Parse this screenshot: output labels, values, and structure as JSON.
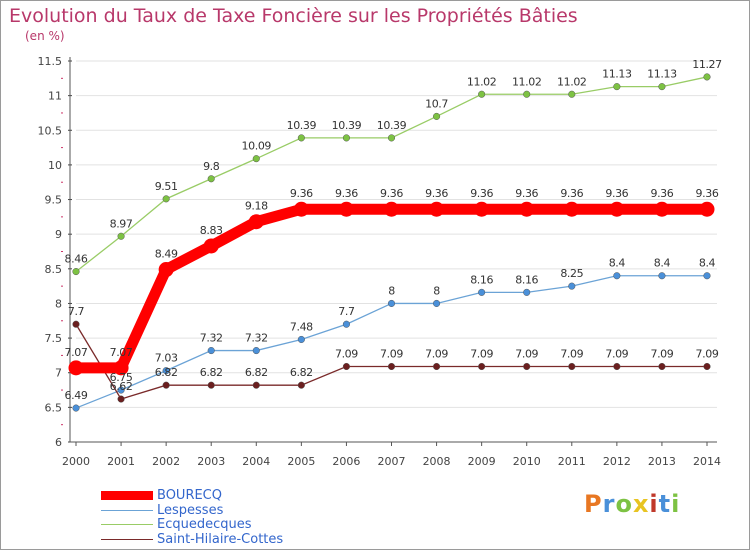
{
  "chart_data": {
    "type": "line",
    "title": "Evolution du Taux de Taxe Foncière sur les Propriétés Bâties",
    "ylabel": "(en %)",
    "xlabel": "",
    "x": [
      "2000",
      "2001",
      "2002",
      "2003",
      "2004",
      "2005",
      "2006",
      "2007",
      "2008",
      "2009",
      "2010",
      "2011",
      "2012",
      "2013",
      "2014"
    ],
    "ylim": [
      6,
      11.5
    ],
    "yticks": [
      "6",
      "6.5",
      "7",
      "7.5",
      "8",
      "8.5",
      "9",
      "9.5",
      "10",
      "10.5",
      "11",
      "11.5"
    ],
    "grid": "horizontal",
    "legend_position": "bottom-left",
    "series": [
      {
        "name": "BOURECQ",
        "color": "#ff0000",
        "emphasis": true,
        "values": [
          7.07,
          7.07,
          8.49,
          8.83,
          9.18,
          9.36,
          9.36,
          9.36,
          9.36,
          9.36,
          9.36,
          9.36,
          9.36,
          9.36,
          9.36
        ],
        "labels": [
          "7.07",
          "7.07",
          "8.49",
          "8.83",
          "9.18",
          "9.36",
          "9.36",
          "9.36",
          "9.36",
          "9.36",
          "9.36",
          "9.36",
          "9.36",
          "9.36",
          "9.36"
        ]
      },
      {
        "name": "Lespesses",
        "color": "#6ba3d6",
        "marker_color": "#4a90d9",
        "values": [
          6.49,
          6.75,
          7.03,
          7.32,
          7.32,
          7.48,
          7.7,
          8,
          8,
          8.16,
          8.16,
          8.25,
          8.4,
          8.4,
          8.4
        ],
        "labels": [
          "6.49",
          "6.75",
          "7.03",
          "7.32",
          "7.32",
          "7.48",
          "7.7",
          "8",
          "8",
          "8.16",
          "8.16",
          "8.25",
          "8.4",
          "8.4",
          "8.4"
        ]
      },
      {
        "name": "Ecquedecques",
        "color": "#99cc66",
        "marker_color": "#7dc243",
        "values": [
          8.46,
          8.97,
          9.51,
          9.8,
          10.09,
          10.39,
          10.39,
          10.39,
          10.7,
          11.02,
          11.02,
          11.02,
          11.13,
          11.13,
          11.27
        ],
        "labels": [
          "8.46",
          "8.97",
          "9.51",
          "9.8",
          "10.09",
          "10.39",
          "10.39",
          "10.39",
          "10.7",
          "11.02",
          "11.02",
          "11.02",
          "11.13",
          "11.13",
          "11.27"
        ]
      },
      {
        "name": "Saint-Hilaire-Cottes",
        "color": "#7a2a2a",
        "marker_color": "#6b1f1f",
        "values": [
          7.7,
          6.62,
          6.82,
          6.82,
          6.82,
          6.82,
          7.09,
          7.09,
          7.09,
          7.09,
          7.09,
          7.09,
          7.09,
          7.09,
          7.09
        ],
        "labels": [
          "7.7",
          "6.62",
          "6.82",
          "6.82",
          "6.82",
          "6.82",
          "7.09",
          "7.09",
          "7.09",
          "7.09",
          "7.09",
          "7.09",
          "7.09",
          "7.09",
          "7.09"
        ]
      }
    ]
  },
  "logo": {
    "letters": [
      "P",
      "r",
      "o",
      "x",
      "i",
      "t",
      "i"
    ],
    "colors": [
      "#e87722",
      "#4a90d9",
      "#7dc243",
      "#e8c422",
      "#c0392b",
      "#4a90d9",
      "#7dc243"
    ]
  }
}
